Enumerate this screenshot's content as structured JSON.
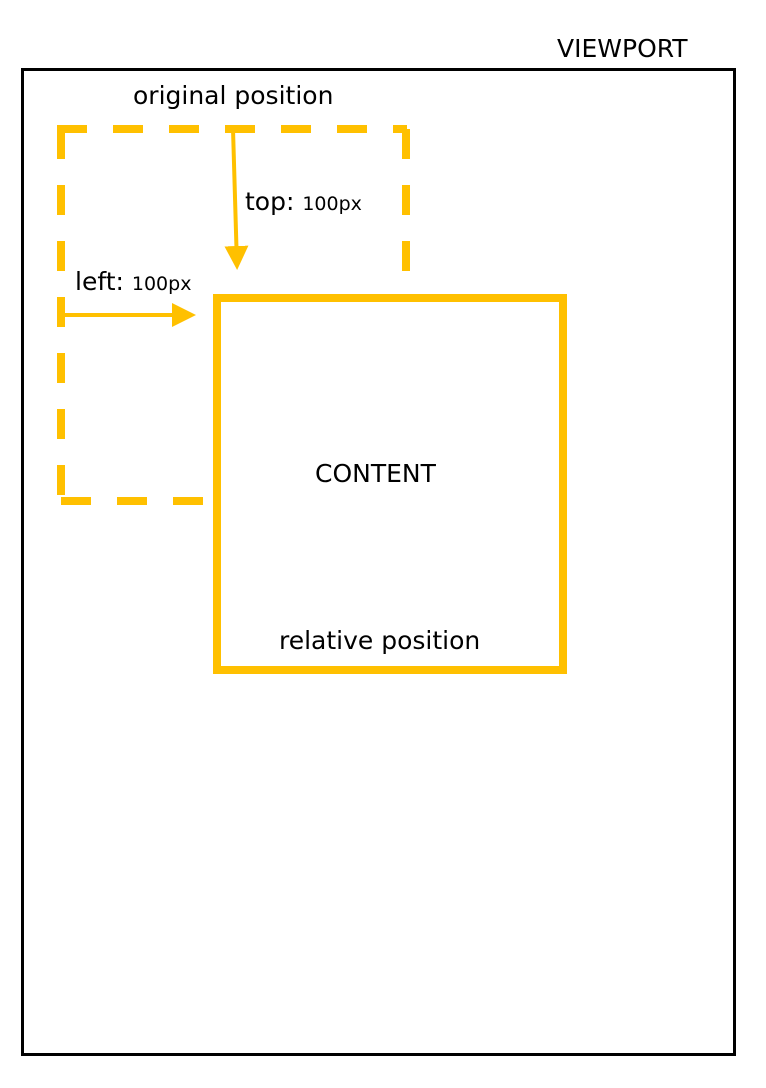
{
  "colors": {
    "accent": "#FFC000",
    "frame": "#000000",
    "background": "#FFFFFF"
  },
  "labels": {
    "viewport": "VIEWPORT",
    "original_position": "original position",
    "top_property": "top:",
    "top_value": "100px",
    "left_property": "left:",
    "left_value": "100px",
    "content": "CONTENT",
    "relative_position": "relative position"
  }
}
